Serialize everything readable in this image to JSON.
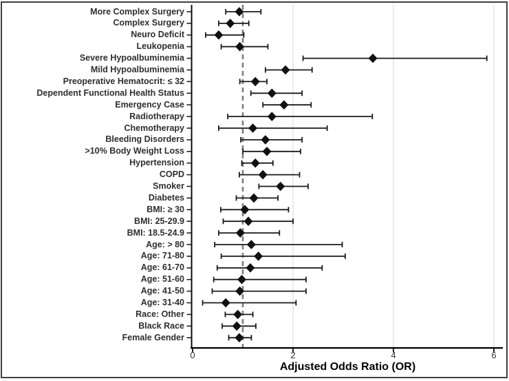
{
  "chart_data": {
    "type": "scatter",
    "subtype": "forest-plot",
    "title": "",
    "xlabel": "Adjusted Odds Ratio (OR)",
    "ylabel": "",
    "xlim": [
      0,
      6.2
    ],
    "x_ticks": [
      0,
      2,
      4,
      6
    ],
    "grid": "vertical-light-gray",
    "legend": "none",
    "reference_line": {
      "x": 1,
      "style": "dashed",
      "color": "#7f7f7f"
    },
    "marker": "diamond",
    "marker_color": "#111111",
    "ci_color": "#1a1a1a",
    "series": [
      {
        "label": "More Complex Surgery",
        "or": 0.93,
        "ci_low": 0.66,
        "ci_high": 1.36
      },
      {
        "label": "Complex Surgery",
        "or": 0.75,
        "ci_low": 0.52,
        "ci_high": 1.12
      },
      {
        "label": "Neuro Deficit",
        "or": 0.52,
        "ci_low": 0.26,
        "ci_high": 1.02
      },
      {
        "label": "Leukopenia",
        "or": 0.94,
        "ci_low": 0.57,
        "ci_high": 1.5
      },
      {
        "label": "Severe Hypoalbuminemia",
        "or": 3.59,
        "ci_low": 2.2,
        "ci_high": 5.86
      },
      {
        "label": "Mild Hypoalbuminemia",
        "or": 1.85,
        "ci_low": 1.45,
        "ci_high": 2.38
      },
      {
        "label": "Preoperative Hematocrit: ≤ 32",
        "or": 1.25,
        "ci_low": 0.94,
        "ci_high": 1.48
      },
      {
        "label": "Dependent Functional Health Status",
        "or": 1.58,
        "ci_low": 1.16,
        "ci_high": 2.18
      },
      {
        "label": "Emergency Case",
        "or": 1.82,
        "ci_low": 1.4,
        "ci_high": 2.36
      },
      {
        "label": "Radiotherapy",
        "or": 1.58,
        "ci_low": 0.7,
        "ci_high": 3.58
      },
      {
        "label": "Chemotherapy",
        "or": 1.2,
        "ci_low": 0.52,
        "ci_high": 2.68
      },
      {
        "label": "Bleeding Disorders",
        "or": 1.45,
        "ci_low": 0.96,
        "ci_high": 2.18
      },
      {
        "label": ">10% Body Weight Loss",
        "or": 1.48,
        "ci_low": 1.0,
        "ci_high": 2.15
      },
      {
        "label": "Hypertension",
        "or": 1.25,
        "ci_low": 0.98,
        "ci_high": 1.6
      },
      {
        "label": "COPD",
        "or": 1.4,
        "ci_low": 0.93,
        "ci_high": 2.13
      },
      {
        "label": "Smoker",
        "or": 1.75,
        "ci_low": 1.32,
        "ci_high": 2.3
      },
      {
        "label": "Diabetes",
        "or": 1.22,
        "ci_low": 0.87,
        "ci_high": 1.7
      },
      {
        "label": "BMI: ≥ 30",
        "or": 1.04,
        "ci_low": 0.56,
        "ci_high": 1.91
      },
      {
        "label": "BMI: 25-29.9",
        "or": 1.11,
        "ci_low": 0.61,
        "ci_high": 2.0
      },
      {
        "label": "BMI: 18.5-24.9",
        "or": 0.95,
        "ci_low": 0.52,
        "ci_high": 1.73
      },
      {
        "label": "Age: > 80",
        "or": 1.17,
        "ci_low": 0.44,
        "ci_high": 2.98
      },
      {
        "label": "Age: 71-80",
        "or": 1.31,
        "ci_low": 0.57,
        "ci_high": 3.04
      },
      {
        "label": "Age: 61-70",
        "or": 1.15,
        "ci_low": 0.49,
        "ci_high": 2.58
      },
      {
        "label": "Age: 51-60",
        "or": 0.98,
        "ci_low": 0.42,
        "ci_high": 2.26
      },
      {
        "label": "Age: 41-50",
        "or": 0.94,
        "ci_low": 0.39,
        "ci_high": 2.26
      },
      {
        "label": "Age: 31-40",
        "or": 0.66,
        "ci_low": 0.2,
        "ci_high": 2.06
      },
      {
        "label": "Race: Other",
        "or": 0.9,
        "ci_low": 0.65,
        "ci_high": 1.2
      },
      {
        "label": "Black Race",
        "or": 0.88,
        "ci_low": 0.59,
        "ci_high": 1.26
      },
      {
        "label": "Female Gender",
        "or": 0.93,
        "ci_low": 0.72,
        "ci_high": 1.17
      }
    ]
  },
  "colors": {
    "background": "#ffffff",
    "frame_border": "#3f3f3f",
    "axis_line": "#000000",
    "gridline": "#e0e0e0",
    "reference_dash": "#7f7f7f",
    "marker": "#111111",
    "label_text": "#2e2e2e",
    "tick_text": "#333333"
  }
}
